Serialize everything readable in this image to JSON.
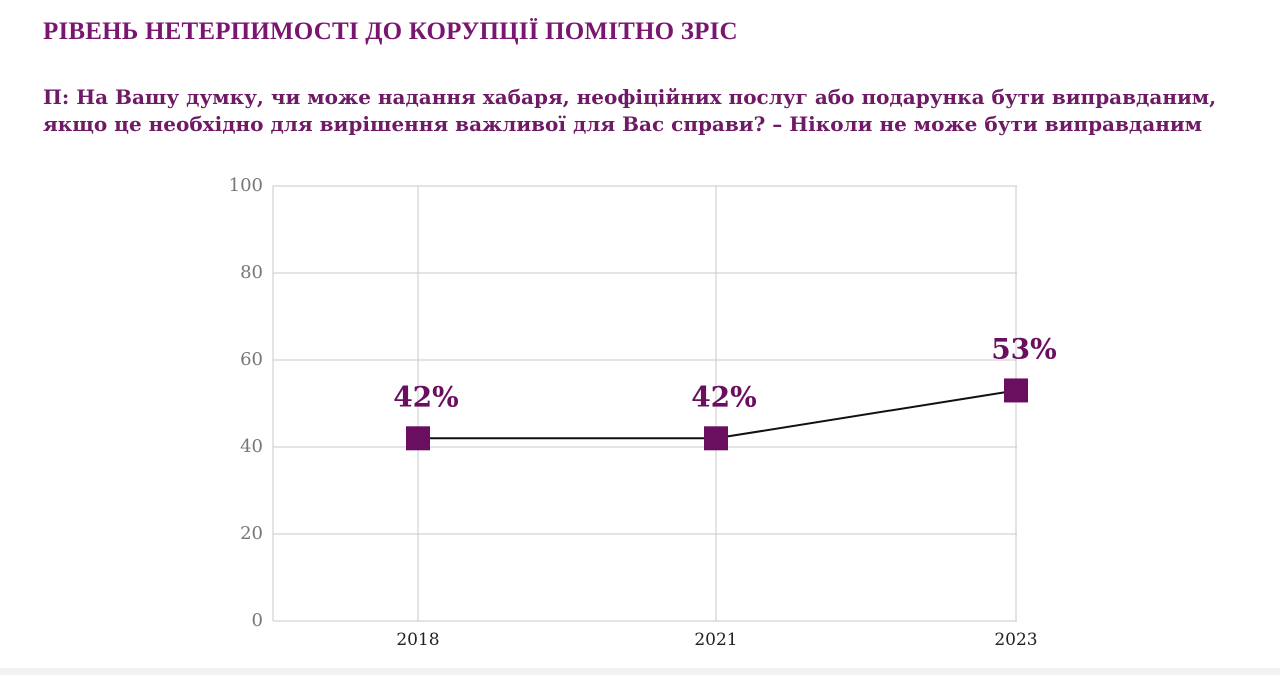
{
  "header": {
    "title": "РІВЕНЬ НЕТЕРПИМОСТІ ДО КОРУПЦІЇ ПОМІТНО ЗРІС",
    "question": "П: На Вашу думку, чи може надання хабаря, неофіційних послуг або подарунка бути виправданим, якщо це необхідно для вирішення важливої для Вас справи? – Ніколи не може бути виправданим"
  },
  "chart_data": {
    "type": "line",
    "categories": [
      "2018",
      "2021",
      "2023"
    ],
    "values": [
      42,
      42,
      53
    ],
    "data_labels": [
      "42%",
      "42%",
      "53%"
    ],
    "ylim": [
      0,
      100
    ],
    "yticks": [
      "0",
      "20",
      "40",
      "60",
      "80",
      "100"
    ],
    "grid": true,
    "legend": "none",
    "colors": {
      "marker": "#6a0f5f",
      "line": "#111111",
      "label": "#6a0f5f",
      "grid": "#c8c8c8",
      "tick": "#777777"
    }
  }
}
